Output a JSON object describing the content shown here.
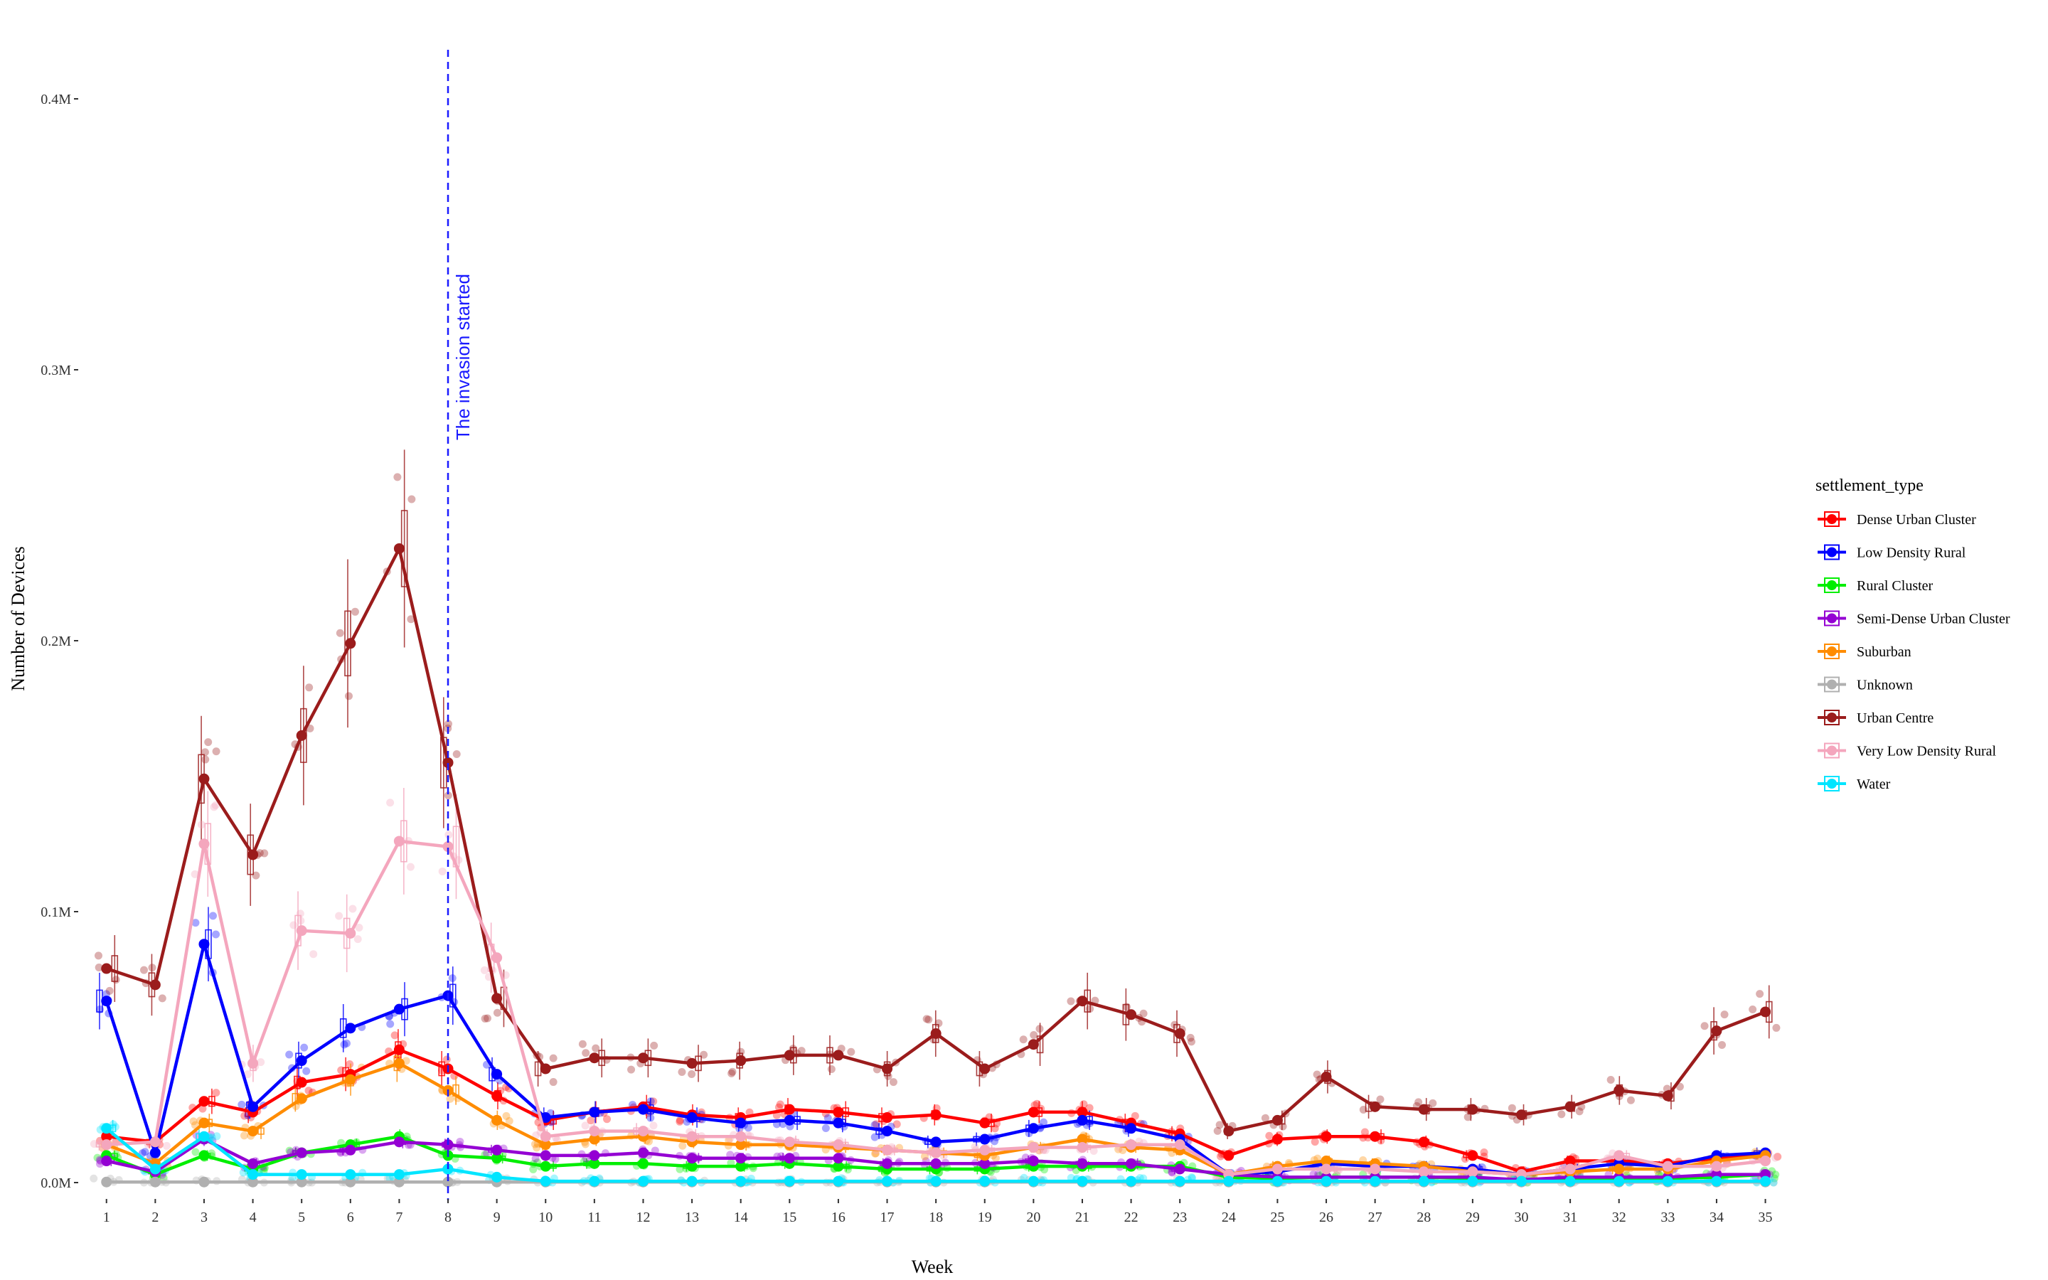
{
  "chart_data": {
    "type": "line",
    "xlabel": "Week",
    "ylabel": "Number of Devices",
    "ylim": [
      0,
      420000
    ],
    "y_ticks": [
      {
        "value": 0,
        "label": "0.0M"
      },
      {
        "value": 100000,
        "label": "0.1M"
      },
      {
        "value": 200000,
        "label": "0.2M"
      },
      {
        "value": 300000,
        "label": "0.3M"
      },
      {
        "value": 400000,
        "label": "0.4M"
      }
    ],
    "x": [
      1,
      2,
      3,
      4,
      5,
      6,
      7,
      8,
      9,
      10,
      11,
      12,
      13,
      14,
      15,
      16,
      17,
      18,
      19,
      20,
      21,
      22,
      23,
      24,
      25,
      26,
      27,
      28,
      29,
      30,
      31,
      32,
      33,
      34,
      35
    ],
    "x_tick_labels": [
      "1",
      "2",
      "3",
      "4",
      "5",
      "6",
      "7",
      "8",
      "9",
      "10",
      "11",
      "12",
      "13",
      "14",
      "15",
      "16",
      "17",
      "18",
      "19",
      "20",
      "21",
      "22",
      "23",
      "24",
      "25",
      "26",
      "27",
      "28",
      "29",
      "30",
      "31",
      "32",
      "33",
      "34",
      "35"
    ],
    "grid": false,
    "legend_position": "right",
    "legend_title": "settlement_type",
    "annotation": {
      "x": 8,
      "text": "The invasion started",
      "color": "#1a1aff"
    },
    "series": [
      {
        "name": "Dense Urban Cluster",
        "color": "#ff0000",
        "values": [
          17000,
          15000,
          30000,
          26000,
          37000,
          40000,
          49000,
          42000,
          32000,
          23000,
          26000,
          28000,
          25000,
          24000,
          27000,
          26000,
          24000,
          25000,
          22000,
          26000,
          26000,
          22000,
          18000,
          10000,
          16000,
          17000,
          17000,
          15000,
          10000,
          4000,
          8000,
          8000,
          7000,
          9000,
          10000
        ]
      },
      {
        "name": "Low Density Rural",
        "color": "#0000ff",
        "values": [
          67000,
          11000,
          88000,
          28000,
          45000,
          57000,
          64000,
          69000,
          40000,
          24000,
          26000,
          27000,
          24000,
          22000,
          23000,
          22000,
          19000,
          15000,
          16000,
          20000,
          23000,
          20000,
          16000,
          3000,
          4000,
          7000,
          6000,
          6000,
          5000,
          3000,
          5000,
          7000,
          6000,
          10000,
          11000
        ]
      },
      {
        "name": "Rural Cluster",
        "color": "#00ee00",
        "values": [
          10000,
          3000,
          10000,
          5000,
          11000,
          14000,
          17000,
          10000,
          9000,
          6000,
          7000,
          7000,
          6000,
          6000,
          7000,
          6000,
          5000,
          5000,
          5000,
          6000,
          6000,
          6000,
          6000,
          2000,
          1500,
          2000,
          2000,
          2000,
          1500,
          1000,
          1500,
          1500,
          1500,
          2000,
          3000
        ]
      },
      {
        "name": "Semi-Dense Urban Cluster",
        "color": "#9400d3",
        "values": [
          8000,
          4000,
          16000,
          7000,
          11000,
          12000,
          15000,
          14000,
          12000,
          10000,
          10000,
          11000,
          9000,
          9000,
          9000,
          9000,
          7000,
          7000,
          7000,
          8000,
          7000,
          7000,
          5000,
          3000,
          2000,
          2000,
          2000,
          2000,
          2000,
          1000,
          2000,
          2000,
          2000,
          3000,
          3000
        ]
      },
      {
        "name": "Suburban",
        "color": "#ff8c00",
        "values": [
          14000,
          7000,
          22000,
          19000,
          31000,
          38000,
          44000,
          34000,
          23000,
          14000,
          16000,
          17000,
          15000,
          14000,
          14000,
          13000,
          12000,
          11000,
          10000,
          13000,
          16000,
          13000,
          12000,
          3000,
          6000,
          8000,
          7000,
          6000,
          4000,
          3000,
          4000,
          5000,
          5000,
          8000,
          10000
        ]
      },
      {
        "name": "Unknown",
        "color": "#b0b0b0",
        "values": [
          200,
          200,
          200,
          200,
          200,
          200,
          200,
          200,
          200,
          200,
          200,
          200,
          200,
          200,
          200,
          200,
          200,
          200,
          200,
          200,
          200,
          200,
          200,
          200,
          200,
          200,
          200,
          200,
          200,
          200,
          200,
          200,
          200,
          200,
          200
        ]
      },
      {
        "name": "Urban Centre",
        "color": "#9b1c1c",
        "values": [
          79000,
          73000,
          149000,
          121000,
          165000,
          199000,
          234000,
          155000,
          68000,
          42000,
          46000,
          46000,
          44000,
          45000,
          47000,
          47000,
          42000,
          55000,
          42000,
          51000,
          67000,
          62000,
          55000,
          19000,
          23000,
          39000,
          28000,
          27000,
          27000,
          25000,
          28000,
          34000,
          32000,
          56000,
          63000
        ]
      },
      {
        "name": "Very Low Density Rural",
        "color": "#f4a6bd",
        "values": [
          14000,
          15000,
          125000,
          44000,
          93000,
          92000,
          126000,
          124000,
          83000,
          17000,
          19000,
          19000,
          17000,
          17000,
          15000,
          14000,
          12000,
          11000,
          12000,
          13000,
          13000,
          14000,
          14000,
          3000,
          5000,
          5000,
          5000,
          4000,
          4000,
          3000,
          5000,
          10000,
          6000,
          6000,
          8000
        ]
      },
      {
        "name": "Water",
        "color": "#00e5ff",
        "values": [
          20000,
          5000,
          17000,
          3000,
          3000,
          3000,
          3000,
          5000,
          2000,
          500,
          500,
          500,
          500,
          500,
          500,
          500,
          500,
          500,
          500,
          500,
          500,
          500,
          500,
          500,
          500,
          500,
          500,
          500,
          500,
          500,
          500,
          500,
          500,
          500,
          500
        ]
      }
    ]
  }
}
